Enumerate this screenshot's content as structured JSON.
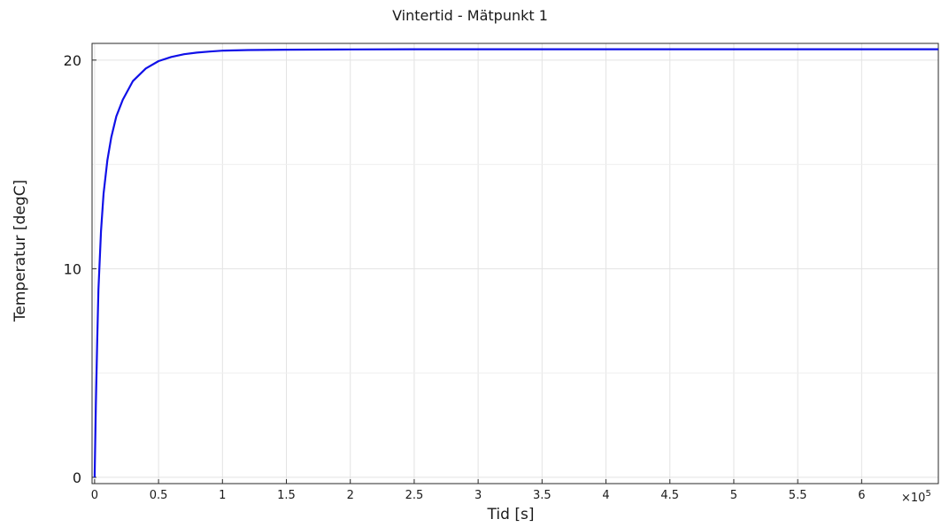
{
  "chart_data": {
    "type": "line",
    "title": "Vintertid - Mätpunkt 1",
    "xlabel": "Tid [s]",
    "ylabel": "Temperatur [degC]",
    "x_multiplier_label": "×10",
    "x_multiplier_exponent": "5",
    "xlim": [
      -0.02,
      6.6
    ],
    "ylim": [
      -0.3,
      20.8
    ],
    "x_ticks": [
      0,
      0.5,
      1,
      1.5,
      2,
      2.5,
      3,
      3.5,
      4,
      4.5,
      5,
      5.5,
      6
    ],
    "x_tick_labels": [
      "0",
      "0.5",
      "1",
      "1.5",
      "2",
      "2.5",
      "3",
      "3.5",
      "4",
      "4.5",
      "5",
      "5.5",
      "6"
    ],
    "y_ticks": [
      0,
      10,
      20
    ],
    "y_tick_labels": [
      "0",
      "10",
      "20"
    ],
    "y_minor_grid": [
      5,
      15
    ],
    "grid": true,
    "color": "#1010e8",
    "series": [
      {
        "x": [
          0,
          0.01,
          0.02,
          0.03,
          0.05,
          0.07,
          0.1,
          0.13,
          0.17,
          0.22,
          0.3,
          0.4,
          0.5,
          0.6,
          0.7,
          0.8,
          0.9,
          1.0,
          1.2,
          1.5,
          2.0,
          2.5,
          3.0,
          4.0,
          5.0,
          6.0,
          6.6
        ],
        "y": [
          0.0,
          3.5,
          6.5,
          9.0,
          11.8,
          13.6,
          15.2,
          16.3,
          17.3,
          18.1,
          19.0,
          19.6,
          19.95,
          20.15,
          20.28,
          20.36,
          20.41,
          20.45,
          20.48,
          20.5,
          20.51,
          20.52,
          20.52,
          20.52,
          20.52,
          20.52,
          20.52
        ]
      }
    ]
  }
}
